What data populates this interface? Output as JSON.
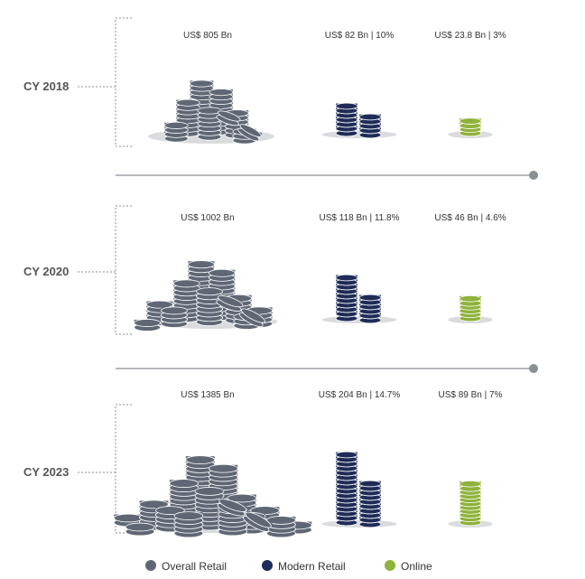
{
  "chart_data": {
    "type": "pictograph",
    "title": "",
    "categories": [
      "CY 2018",
      "CY 2020",
      "CY 2023"
    ],
    "series": [
      {
        "name": "Overall Retail",
        "color": "#5f6775",
        "values": [
          805,
          1002,
          1385
        ],
        "labels": [
          "US$ 805 Bn",
          "US$ 1002 Bn",
          "US$ 1385 Bn"
        ]
      },
      {
        "name": "Modern Retail",
        "color": "#1f2c58",
        "values": [
          82,
          118,
          204
        ],
        "share_percent": [
          10,
          11.8,
          14.7
        ],
        "labels": [
          "US$ 82 Bn | 10%",
          "US$ 118 Bn | 11.8%",
          "US$ 204 Bn | 14.7%"
        ]
      },
      {
        "name": "Online",
        "color": "#8fb23a",
        "values": [
          23.8,
          46,
          89
        ],
        "share_percent": [
          3,
          4.6,
          7
        ],
        "labels": [
          "US$ 23.8 Bn | 3%",
          "US$ 46 Bn | 4.6%",
          "US$ 89 Bn | 7%"
        ]
      }
    ],
    "unit": "US$ Bn",
    "legend_position": "bottom"
  },
  "colors": {
    "shadow": "#d9dbde",
    "guide": "#8a8f96",
    "coin_stroke": "#ffffff"
  }
}
